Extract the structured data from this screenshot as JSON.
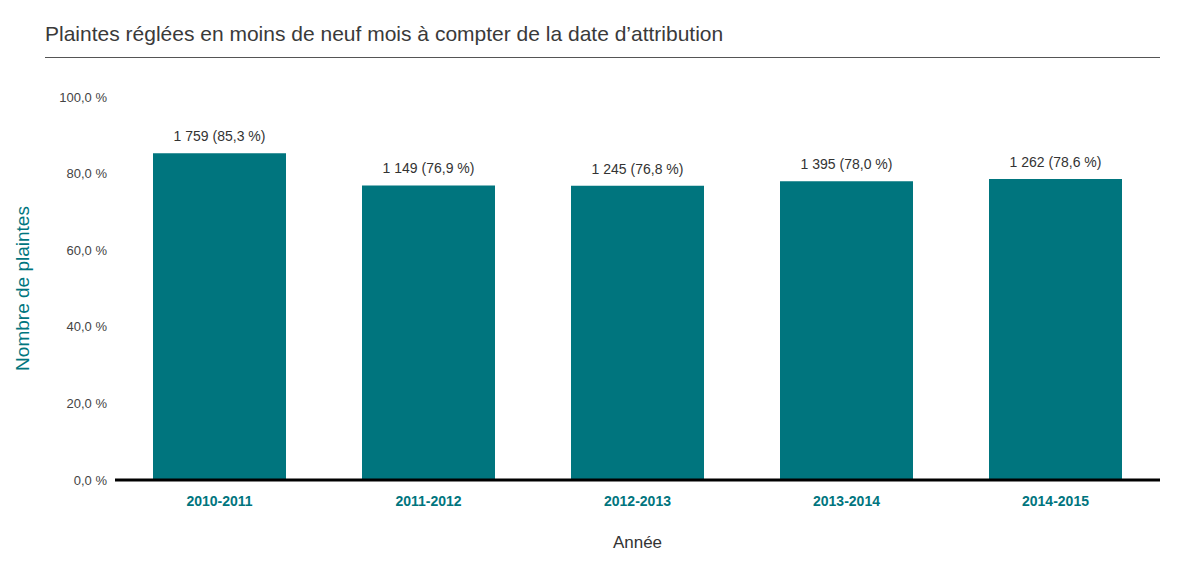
{
  "chart_data": {
    "type": "bar",
    "title": "Plaintes réglées en moins de neuf mois à compter de la date d’attribution",
    "x_label": "Année",
    "y_label": "Nombre de plaintes",
    "categories": [
      "2010-2011",
      "2011-2012",
      "2012-2013",
      "2013-2014",
      "2014-2015"
    ],
    "values": [
      85.3,
      76.9,
      76.8,
      78.0,
      78.6
    ],
    "value_labels": [
      "1 759 (85,3 %)",
      "1 149 (76,9 %)",
      "1 245 (76,8 %)",
      "1 395 (78,0 %)",
      "1 262 (78,6 %)"
    ],
    "color": "#00757e",
    "ylim": [
      0,
      100
    ],
    "yticks": [
      {
        "value": 0,
        "label": "0,0 %"
      },
      {
        "value": 20,
        "label": "20,0 %"
      },
      {
        "value": 40,
        "label": "40,0 %"
      },
      {
        "value": 60,
        "label": "60,0 %"
      },
      {
        "value": 80,
        "label": "80,0 %"
      },
      {
        "value": 100,
        "label": "100,0 %"
      }
    ],
    "grid": false,
    "data_labels": true
  }
}
